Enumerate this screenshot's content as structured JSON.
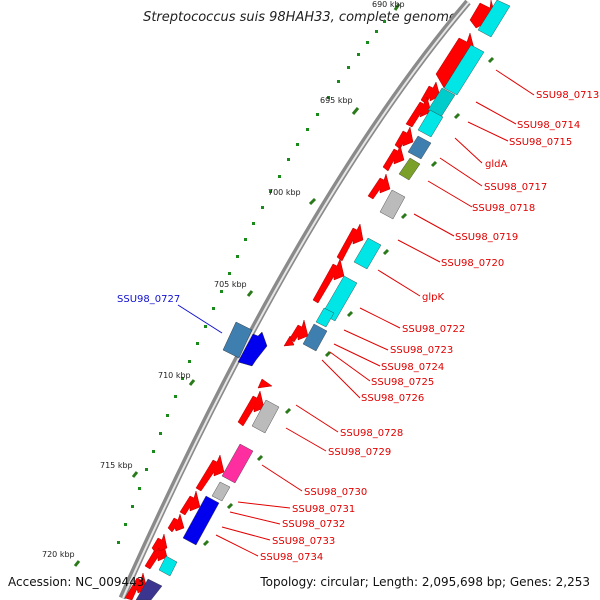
{
  "title": "Streptococcus suis 98HAH33, complete genome",
  "accession": "Accession: NC_009443",
  "summary": "Topology: circular; Length: 2,095,698 bp; Genes: 2,253",
  "ticks": [
    "690 kbp",
    "695 kbp",
    "700 kbp",
    "705 kbp",
    "710 kbp",
    "715 kbp",
    "720 kbp"
  ],
  "gene_labels_right": [
    "SSU98_0713",
    "SSU98_0714",
    "SSU98_0715",
    "gldA",
    "SSU98_0717",
    "SSU98_0718",
    "SSU98_0719",
    "SSU98_0720",
    "glpK",
    "SSU98_0722",
    "SSU98_0723",
    "SSU98_0724",
    "SSU98_0725",
    "SSU98_0726",
    "SSU98_0728",
    "SSU98_0729",
    "SSU98_0730",
    "SSU98_0731",
    "SSU98_0732",
    "SSU98_0733",
    "SSU98_0734"
  ],
  "gene_label_left": "SSU98_0727",
  "colors": {
    "cds": "#ff0000",
    "cyan": "#00e5e5",
    "teal": "#3a8fa0",
    "grey": "#bbbbbb",
    "olive": "#7aa02a",
    "blue": "#0000ee",
    "steel": "#3f7fb0",
    "pink": "#ff2ea0",
    "navy": "#3b3590",
    "label_red": "#e00000",
    "label_blue": "#1010d0",
    "tick_green": "#2a7a1a"
  }
}
